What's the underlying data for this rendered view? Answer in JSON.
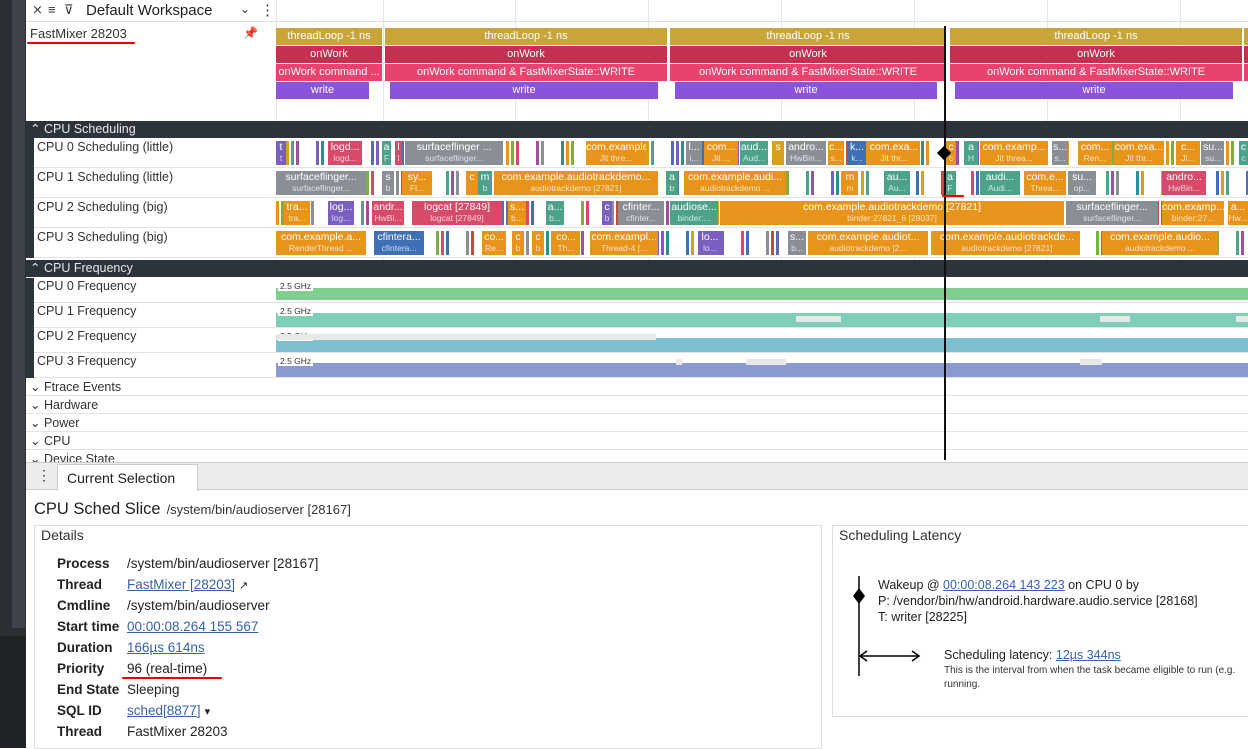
{
  "workspace": {
    "name": "Default Workspace"
  },
  "thread_track": {
    "label": "FastMixer 28203",
    "row1": [
      "threadLoop -1 ns",
      "threadLoop -1 ns",
      "threadLoop -1 ns",
      "threadLoop -1 ns"
    ],
    "row2": [
      "onWork",
      "onWork",
      "onWork",
      "onWork"
    ],
    "row3": [
      "onWork  command ...",
      "onWork  command & FastMixerState::WRITE",
      "onWork  command & FastMixerState::WRITE",
      "onWork  command & FastMixerState::WRITE"
    ],
    "row4": [
      "write",
      "write",
      "write",
      "write"
    ]
  },
  "sched_group": {
    "title": "CPU Scheduling",
    "tracks": [
      "CPU 0 Scheduling (little)",
      "CPU 1 Scheduling (little)",
      "CPU 2 Scheduling (big)",
      "CPU 3 Scheduling (big)"
    ],
    "cpu0": [
      [
        "t",
        "t"
      ],
      [
        "logd...",
        "logd..."
      ],
      [
        "a",
        "F"
      ],
      [
        "l",
        "l"
      ],
      [
        "surfaceflinger ...",
        "surfaceflinger..."
      ],
      [
        "com.example...",
        "Jit thre..."
      ],
      [
        "l...",
        "i..."
      ],
      [
        "com...",
        "Jit ..."
      ],
      [
        "aud...",
        "Aud..."
      ],
      [
        "s",
        ""
      ],
      [
        "andro...",
        "HwBin..."
      ],
      [
        "c...",
        "s..."
      ],
      [
        "k...",
        "k..."
      ],
      [
        "com.exa...",
        "Jit thr..."
      ],
      [
        "c",
        "c"
      ],
      [
        "a",
        "H"
      ],
      [
        "com.examp...",
        "Jit threa..."
      ],
      [
        "s...",
        "s..."
      ],
      [
        "com...",
        "Ren..."
      ],
      [
        "com.exa...",
        "Jit thr..."
      ],
      [
        "c...",
        "Ji..."
      ],
      [
        "su...",
        "su..."
      ],
      [
        "c",
        "c"
      ]
    ],
    "cpu1": [
      [
        "surfaceflinger...",
        "surfaceflinger..."
      ],
      [
        "s",
        "b"
      ],
      [
        "sy...",
        "Fl..."
      ],
      [
        "c",
        ""
      ],
      [
        "m",
        "b"
      ],
      [
        "com.example.audiotrackdemo...",
        "audiotrackdemo [27821]"
      ],
      [
        "a",
        "b"
      ],
      [
        "com.example.audi...",
        "audiotrackdemo ..."
      ],
      [
        "m",
        "m"
      ],
      [
        "au...",
        "Au..."
      ],
      [
        "a",
        "F"
      ],
      [
        "audi...",
        "Audi..."
      ],
      [
        "com.e...",
        "Threa..."
      ],
      [
        "su...",
        "op..."
      ],
      [
        "andro...",
        "HwBin..."
      ]
    ],
    "cpu2": [
      [
        "tra...",
        "tra..."
      ],
      [
        "log...",
        "log..."
      ],
      [
        "andr...",
        "HwBi..."
      ],
      [
        "logcat [27849]",
        "logcat [27849]"
      ],
      [
        "s...",
        "b..."
      ],
      [
        "a...",
        "b..."
      ],
      [
        "c",
        "b"
      ],
      [
        "cfinter...",
        "cfinter..."
      ],
      [
        "audiose...",
        "binder:..."
      ],
      [
        "com.example.audiotrackdemo [27821]",
        "binder:27821_6 [28037]"
      ],
      [
        "surfaceflinger...",
        "surfaceflinger..."
      ],
      [
        "com.examp...",
        "binder:27..."
      ],
      [
        "a...",
        "Hw..."
      ]
    ],
    "cpu3": [
      [
        "com.example.a...",
        "RenderThread ..."
      ],
      [
        "cfintera...",
        "cfintera..."
      ],
      [
        "co...",
        "Re..."
      ],
      [
        "c",
        "b"
      ],
      [
        "c",
        "b"
      ],
      [
        "co...",
        "Th..."
      ],
      [
        "com.exampl...",
        "Thread-4 [..."
      ],
      [
        "lo...",
        "lo..."
      ],
      [
        "s...",
        "b..."
      ],
      [
        "com.example.audiot...",
        "audiotrackdemo [2..."
      ],
      [
        "com.example.audiotrackde...",
        "audiotrackdemo [27821]"
      ],
      [
        "com.example.audio...",
        "audiotrackdemo ..."
      ]
    ]
  },
  "freq_group": {
    "title": "CPU Frequency",
    "tracks": [
      "CPU 0 Frequency",
      "CPU 1 Frequency",
      "CPU 2 Frequency",
      "CPU 3 Frequency"
    ],
    "value_label": "2.5 GHz"
  },
  "collapsed_groups": [
    "Ftrace Events",
    "Hardware",
    "Power",
    "CPU",
    "Device State"
  ],
  "tabs": {
    "current": "Current Selection"
  },
  "selection": {
    "title": "CPU Sched Slice",
    "subtitle": "/system/bin/audioserver [28167]",
    "details_title": "Details",
    "fields": [
      {
        "k": "Process",
        "v": "/system/bin/audioserver [28167]"
      },
      {
        "k": "Thread",
        "v": "FastMixer [28203]",
        "link": true,
        "ext": "↗"
      },
      {
        "k": "Cmdline",
        "v": "/system/bin/audioserver"
      },
      {
        "k": "Start time",
        "v": "00:00:08.264 155 567",
        "link": true
      },
      {
        "k": "Duration",
        "v": "166µs 614ns",
        "link": true
      },
      {
        "k": "Priority",
        "v": "96 (real-time)"
      },
      {
        "k": "End State",
        "v": "Sleeping"
      },
      {
        "k": "SQL ID",
        "v": "sched[8877]",
        "link": true,
        "ext": "▾"
      },
      {
        "k": "Thread",
        "v": "FastMixer 28203"
      }
    ],
    "latency": {
      "title": "Scheduling Latency",
      "wakeup_prefix": "Wakeup @ ",
      "wakeup_time": "00:00:08.264 143 223",
      "wakeup_suffix": " on CPU 0 by",
      "process": "P: /vendor/bin/hw/android.hardware.audio.service [28168]",
      "thread": "T: writer [28225]",
      "latency_prefix": "Scheduling latency: ",
      "latency_value": "12µs 344ns",
      "note": "This is the interval from when the task became eligible to run (e.g.",
      "note2": "running."
    }
  },
  "colors": {
    "gold": "#c9a43b",
    "crimson": "#c4304f",
    "pink": "#e8436e",
    "purple": "#8d52dc",
    "orange": "#e8941a",
    "dark": "#2d333a"
  }
}
